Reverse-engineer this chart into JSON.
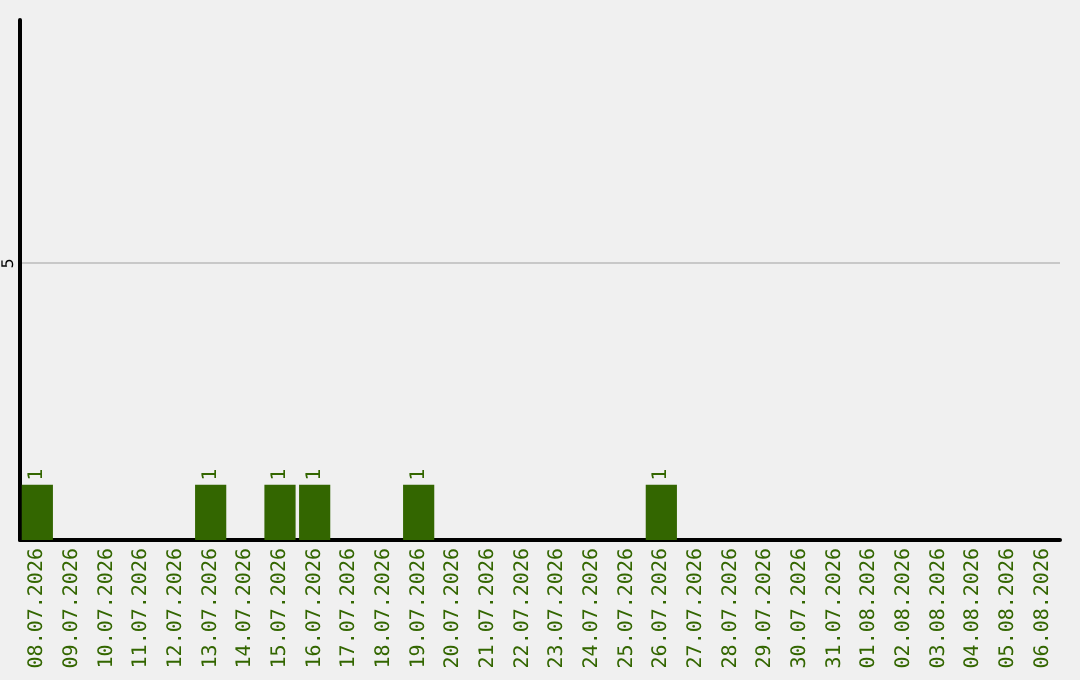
{
  "chart_data": {
    "type": "bar",
    "categories": [
      "08.07.2026",
      "09.07.2026",
      "10.07.2026",
      "11.07.2026",
      "12.07.2026",
      "13.07.2026",
      "14.07.2026",
      "15.07.2026",
      "16.07.2026",
      "17.07.2026",
      "18.07.2026",
      "19.07.2026",
      "20.07.2026",
      "21.07.2026",
      "22.07.2026",
      "23.07.2026",
      "24.07.2026",
      "25.07.2026",
      "26.07.2026",
      "27.07.2026",
      "28.07.2026",
      "29.07.2026",
      "30.07.2026",
      "31.07.2026",
      "01.08.2026",
      "02.08.2026",
      "03.08.2026",
      "04.08.2026",
      "05.08.2026",
      "06.08.2026"
    ],
    "values": [
      1,
      0,
      0,
      0,
      0,
      1,
      0,
      1,
      1,
      0,
      0,
      1,
      0,
      0,
      0,
      0,
      0,
      0,
      1,
      0,
      0,
      0,
      0,
      0,
      0,
      0,
      0,
      0,
      0,
      0
    ],
    "value_labels": [
      "1",
      null,
      null,
      null,
      null,
      "1",
      null,
      "1",
      "1",
      null,
      null,
      "1",
      null,
      null,
      null,
      null,
      null,
      null,
      "1",
      null,
      null,
      null,
      null,
      null,
      null,
      null,
      null,
      null,
      null,
      null
    ],
    "color": "#336600",
    "ylim": [
      0,
      9.4
    ],
    "yticks": [
      5
    ],
    "grid": "y"
  }
}
